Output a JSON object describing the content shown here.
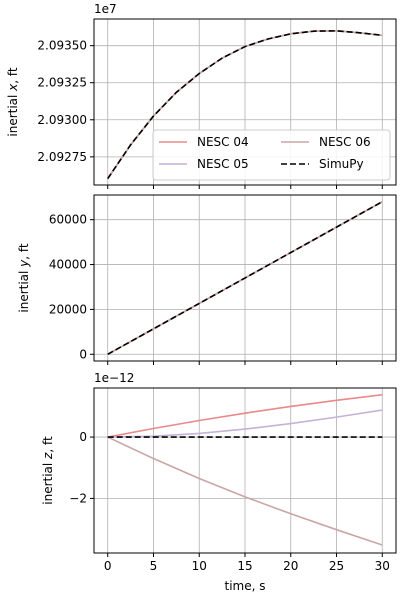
{
  "chart_data": [
    {
      "type": "line",
      "ylabel_prefix": "inertial ",
      "ylabel_var": "x",
      "ylabel_suffix": ", ft",
      "offset_text": "1e7",
      "xlim": [
        -1.5,
        31.5
      ],
      "ylim": [
        2.09256,
        2.09368
      ],
      "yticks": [
        2.09275,
        2.093,
        2.09325,
        2.0935
      ],
      "ytick_labels": [
        "2.09275",
        "2.09300",
        "2.09325",
        "2.09350"
      ],
      "xticks": [
        0,
        5,
        10,
        15,
        20,
        25,
        30
      ],
      "grid": true,
      "legend": {
        "placement": "lower-right",
        "columns": 2,
        "entries": [
          "NESC 04",
          "NESC 05",
          "NESC 06",
          "SimuPy"
        ]
      },
      "x": [
        0,
        2.5,
        5,
        7.5,
        10,
        12.5,
        15,
        17.5,
        20,
        22.5,
        25,
        27.5,
        30
      ],
      "series": [
        {
          "name": "NESC 04",
          "color": "#e8898a",
          "dash": "",
          "values": [
            2.092603,
            2.092831,
            2.093025,
            2.093185,
            2.093312,
            2.093416,
            2.093494,
            2.093545,
            2.09358,
            2.093598,
            2.0936,
            2.093587,
            2.09357
          ]
        },
        {
          "name": "NESC 05",
          "color": "#c6b1d8",
          "dash": "",
          "values": [
            2.092603,
            2.092831,
            2.093025,
            2.093185,
            2.093312,
            2.093416,
            2.093494,
            2.093545,
            2.09358,
            2.093598,
            2.0936,
            2.093587,
            2.09357
          ]
        },
        {
          "name": "NESC 06",
          "color": "#c9a6a3",
          "dash": "",
          "values": [
            2.092603,
            2.092831,
            2.093025,
            2.093185,
            2.093312,
            2.093416,
            2.093494,
            2.093545,
            2.09358,
            2.093598,
            2.0936,
            2.093587,
            2.09357
          ]
        },
        {
          "name": "SimuPy",
          "color": "#000000",
          "dash": "6,3",
          "values": [
            2.092603,
            2.092831,
            2.093025,
            2.093185,
            2.093312,
            2.093416,
            2.093494,
            2.093545,
            2.09358,
            2.093598,
            2.0936,
            2.093587,
            2.09357
          ]
        }
      ]
    },
    {
      "type": "line",
      "ylabel_prefix": "inertial ",
      "ylabel_var": "y",
      "ylabel_suffix": ", ft",
      "offset_text": "",
      "xlim": [
        -1.5,
        31.5
      ],
      "ylim": [
        -3000,
        71000
      ],
      "yticks": [
        0,
        20000,
        40000,
        60000
      ],
      "ytick_labels": [
        "0",
        "20000",
        "40000",
        "60000"
      ],
      "xticks": [
        0,
        5,
        10,
        15,
        20,
        25,
        30
      ],
      "grid": true,
      "x": [
        0,
        30
      ],
      "series": [
        {
          "color": "#e8898a",
          "dash": "",
          "values": [
            0,
            68000
          ]
        },
        {
          "color": "#c6b1d8",
          "dash": "",
          "values": [
            0,
            68000
          ]
        },
        {
          "color": "#c9a6a3",
          "dash": "",
          "values": [
            0,
            68000
          ]
        },
        {
          "color": "#000000",
          "dash": "6,3",
          "values": [
            0,
            68000
          ]
        }
      ]
    },
    {
      "type": "line",
      "ylabel_prefix": "inertial ",
      "ylabel_var": "z",
      "ylabel_suffix": ", ft",
      "offset_text": "1e−12",
      "xlim": [
        -1.5,
        31.5
      ],
      "ylim": [
        -3.78,
        1.6
      ],
      "yticks": [
        -2,
        0
      ],
      "ytick_labels": [
        "−2",
        "0"
      ],
      "xticks": [
        0,
        5,
        10,
        15,
        20,
        25,
        30
      ],
      "xtick_labels": [
        "0",
        "5",
        "10",
        "15",
        "20",
        "25",
        "30"
      ],
      "xlabel": "time, s",
      "grid": true,
      "x": [
        0,
        5,
        10,
        15,
        20,
        25,
        30
      ],
      "series": [
        {
          "color": "#e8898a",
          "dash": "",
          "values": [
            0,
            0.28,
            0.54,
            0.78,
            1.0,
            1.2,
            1.38
          ]
        },
        {
          "color": "#c6b1d8",
          "dash": "",
          "values": [
            0,
            0.03,
            0.12,
            0.26,
            0.44,
            0.65,
            0.88
          ]
        },
        {
          "color": "#c9a6a3",
          "dash": "",
          "values": [
            0,
            -0.7,
            -1.35,
            -1.95,
            -2.5,
            -3.02,
            -3.52
          ]
        },
        {
          "color": "#000000",
          "dash": "6,3",
          "values": [
            0,
            0,
            0,
            0,
            0,
            0,
            0
          ]
        }
      ]
    }
  ]
}
